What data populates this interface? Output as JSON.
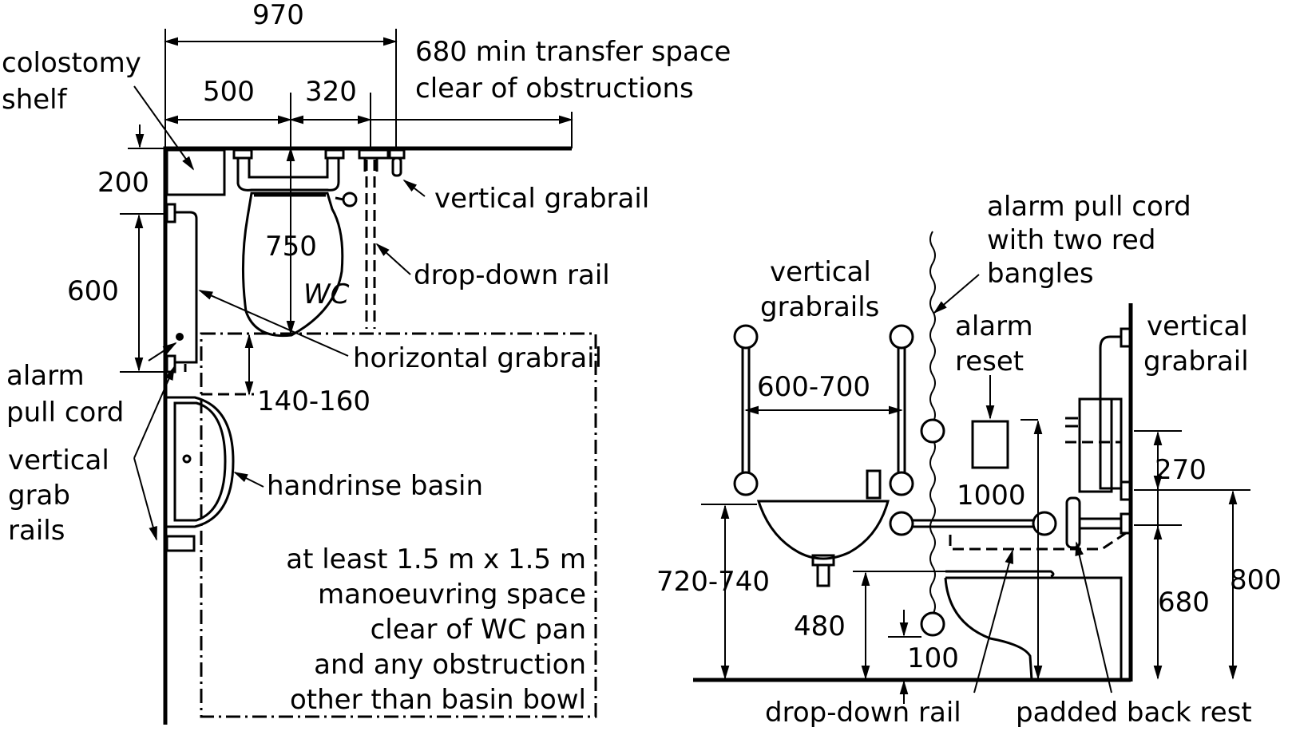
{
  "plan": {
    "dim_total": "970",
    "dim_500": "500",
    "dim_320": "320",
    "dim_750": "750",
    "dim_200": "200",
    "dim_600": "600",
    "dim_140_160": "140-160",
    "wc_label": "WC",
    "transfer_line1": "680 min transfer space",
    "transfer_line2": "clear of obstructions",
    "colostomy_line1": "colostomy",
    "colostomy_line2": "shelf",
    "vertical_grabrail": "vertical grabrail",
    "drop_down_rail": "drop-down rail",
    "horizontal_grabrail": "horizontal grabrail",
    "alarm_line1": "alarm",
    "alarm_line2": "pull cord",
    "vgr_line1": "vertical",
    "vgr_line2": "grab",
    "vgr_line3": "rails",
    "basin": "handrinse basin",
    "space_line1": "at least  1.5 m x 1.5 m",
    "space_line2": "manoeuvring space",
    "space_line3": "clear of WC pan",
    "space_line4": "and any obstruction",
    "space_line5": "other than basin bowl"
  },
  "elevation": {
    "vgr_line1": "vertical",
    "vgr_line2": "grabrails",
    "dim_600_700": "600-700",
    "alarm_cord_line1": "alarm pull cord",
    "alarm_cord_line2": "with two red",
    "alarm_cord_line3": "bangles",
    "alarm_reset_line1": "alarm",
    "alarm_reset_line2": "reset",
    "right_vgr_line1": "vertical",
    "right_vgr_line2": "grabrail",
    "dim_1000": "1000",
    "dim_270": "270",
    "dim_720_740": "720-740",
    "dim_480": "480",
    "dim_100": "100",
    "dim_680": "680",
    "dim_800": "800",
    "drop_down_rail": "drop-down rail",
    "padded_back_rest": "padded back rest"
  }
}
